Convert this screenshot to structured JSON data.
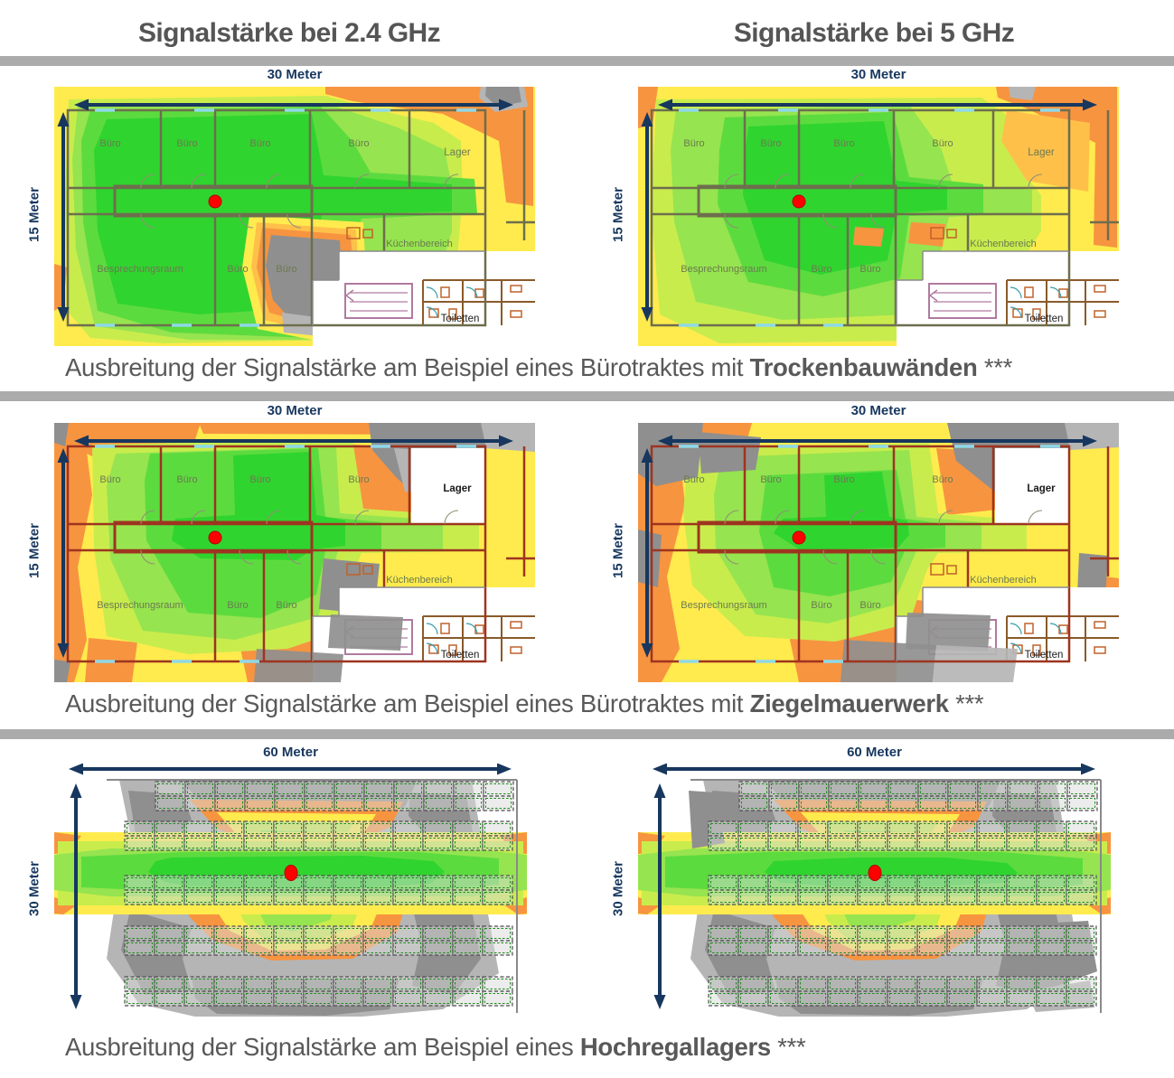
{
  "header": {
    "col_titles": [
      "Signalstärke bei 2.4 GHz",
      "Signalstärke bei 5 GHz"
    ]
  },
  "rows": [
    {
      "section": "office-drywall",
      "width_label": "30 Meter",
      "height_label": "15 Meter",
      "caption": {
        "normal": "Ausbreitung der Signalstärke am Beispiel eines Bürotraktes mit ",
        "bold": "Trockenbauwänden",
        "suffix": " ***"
      },
      "maps": [
        {
          "id": "office-drywall-24ghz",
          "kind": "office",
          "variant": "drywall24",
          "wall": "drywall",
          "lager_white": false,
          "lager_dark_label": false
        },
        {
          "id": "office-drywall-5ghz",
          "kind": "office",
          "variant": "drywall5",
          "wall": "drywall",
          "lager_white": false,
          "lager_dark_label": false
        }
      ]
    },
    {
      "section": "office-brick",
      "width_label": "30 Meter",
      "height_label": "15 Meter",
      "caption": {
        "normal": "Ausbreitung der Signalstärke am Beispiel eines Bürotraktes mit ",
        "bold": "Ziegelmauerwerk",
        "suffix": " ***"
      },
      "maps": [
        {
          "id": "office-brick-24ghz",
          "kind": "office",
          "variant": "brick24",
          "wall": "brick",
          "lager_white": true,
          "lager_dark_label": true
        },
        {
          "id": "office-brick-5ghz",
          "kind": "office",
          "variant": "brick5",
          "wall": "brick",
          "lager_white": true,
          "lager_dark_label": true
        }
      ]
    },
    {
      "section": "warehouse",
      "width_label": "60 Meter",
      "height_label": "30 Meter",
      "caption": {
        "normal": "Ausbreitung der Signalstärke am Beispiel eines ",
        "bold": "Hochregallagers",
        "suffix": " ***"
      },
      "maps": [
        {
          "id": "warehouse-24ghz",
          "kind": "warehouse",
          "variant": "wh24"
        },
        {
          "id": "warehouse-5ghz",
          "kind": "warehouse",
          "variant": "wh5"
        }
      ]
    }
  ],
  "office_rooms": {
    "top": [
      "Büro",
      "Büro",
      "Büro",
      "Büro"
    ],
    "lager": "Lager",
    "besprechung": "Besprechungsraum",
    "bottom": [
      "Büro",
      "Büro"
    ],
    "kueche": "Küchenbereich",
    "toiletten": "Toiletten"
  },
  "colors": {
    "title_text": "#555555",
    "caption_text": "#595959",
    "divider_bar": "#ABABAB",
    "dimension": "#17375E",
    "ap_dot": "#FF0000",
    "plan_line": "#8A8A8A",
    "window": "#8FD8E8",
    "fixture": "#C0622A",
    "stairs": "#B07AA0",
    "rack_border": "#4F4F4F",
    "rack_inner": "#1E8C1E",
    "room_label": "#6B7A50",
    "room_label_dark": "#1A1A1A",
    "walls": {
      "drywall": "#6E6E4E",
      "brick": "#9E3420"
    },
    "heat": {
      "gray_dark": "#8F8F8F",
      "gray_light": "#B5B5B5",
      "orange": "#F79440",
      "orange_light": "#FFC04A",
      "yellow": "#FFEB4D",
      "yellow_green": "#C9EC4D",
      "green_light": "#96E44F",
      "green": "#5CDB3F",
      "green_bright": "#30D42F"
    }
  }
}
